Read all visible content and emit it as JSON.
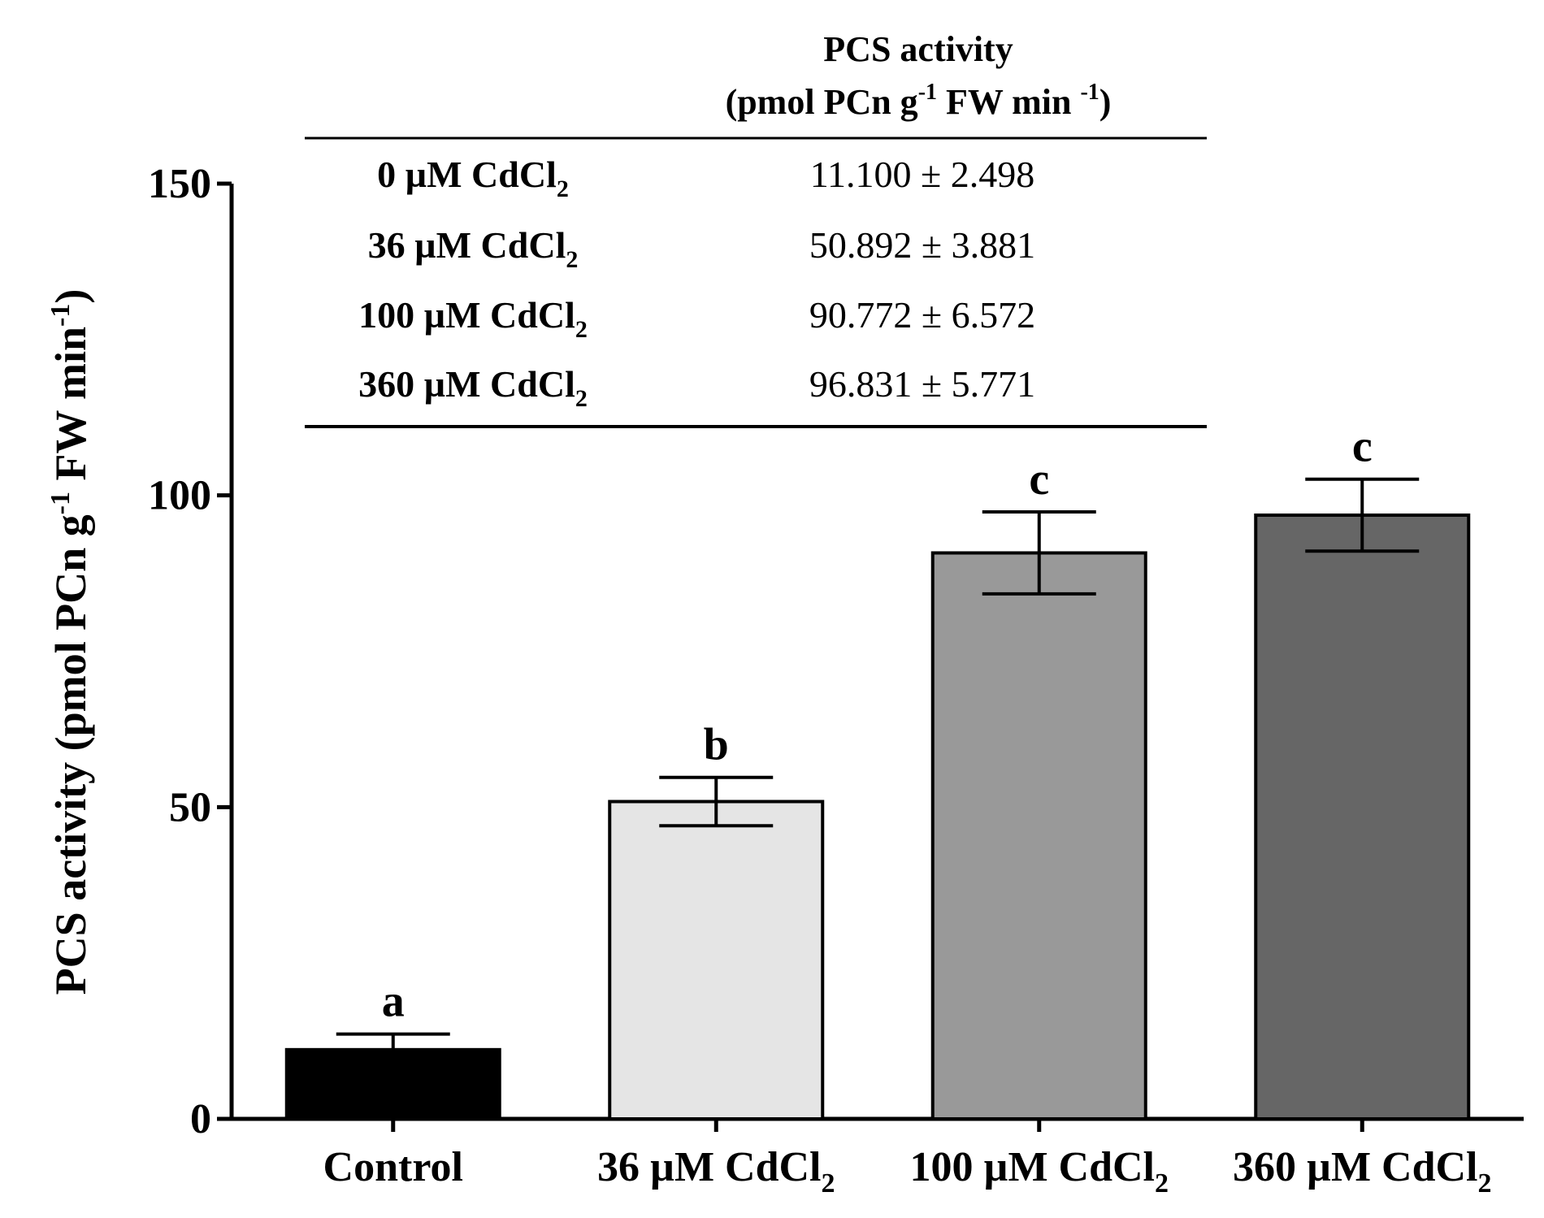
{
  "chart_data": {
    "type": "bar",
    "ylabel": {
      "main": "PCS activity (pmol PCn g",
      "sup1": "-1",
      "mid": " FW min",
      "sup2": "-1",
      "end": ")"
    },
    "ylim": [
      0,
      150
    ],
    "yticks": [
      0,
      50,
      100,
      150
    ],
    "grid": false,
    "categories": [
      {
        "main": "Control",
        "sub": ""
      },
      {
        "main": "36 µM CdCl",
        "sub": "2"
      },
      {
        "main": "100 µM CdCl",
        "sub": "2"
      },
      {
        "main": "360 µM CdCl",
        "sub": "2"
      }
    ],
    "values": [
      11.1,
      50.892,
      90.772,
      96.831
    ],
    "errors": [
      2.498,
      3.881,
      6.572,
      5.771
    ],
    "significance_letters": [
      "a",
      "b",
      "c",
      "c"
    ],
    "bar_colors": [
      "#000000",
      "#e5e5e5",
      "#999999",
      "#666666"
    ],
    "inset_table": {
      "header_line1": "PCS activity",
      "header_line2": {
        "pre": "(pmol PCn g",
        "sup1": "-1",
        "mid": " FW min ",
        "sup2": "-1",
        "end": ")"
      },
      "rows": [
        {
          "label": "0 µM CdCl",
          "sub": "2",
          "value": "11.100 ± 2.498"
        },
        {
          "label": "36 µM CdCl",
          "sub": "2",
          "value": "50.892 ± 3.881"
        },
        {
          "label": "100 µM CdCl",
          "sub": "2",
          "value": "90.772 ± 6.572"
        },
        {
          "label": "360 µM CdCl",
          "sub": "2",
          "value": "96.831 ± 5.771"
        }
      ]
    }
  }
}
